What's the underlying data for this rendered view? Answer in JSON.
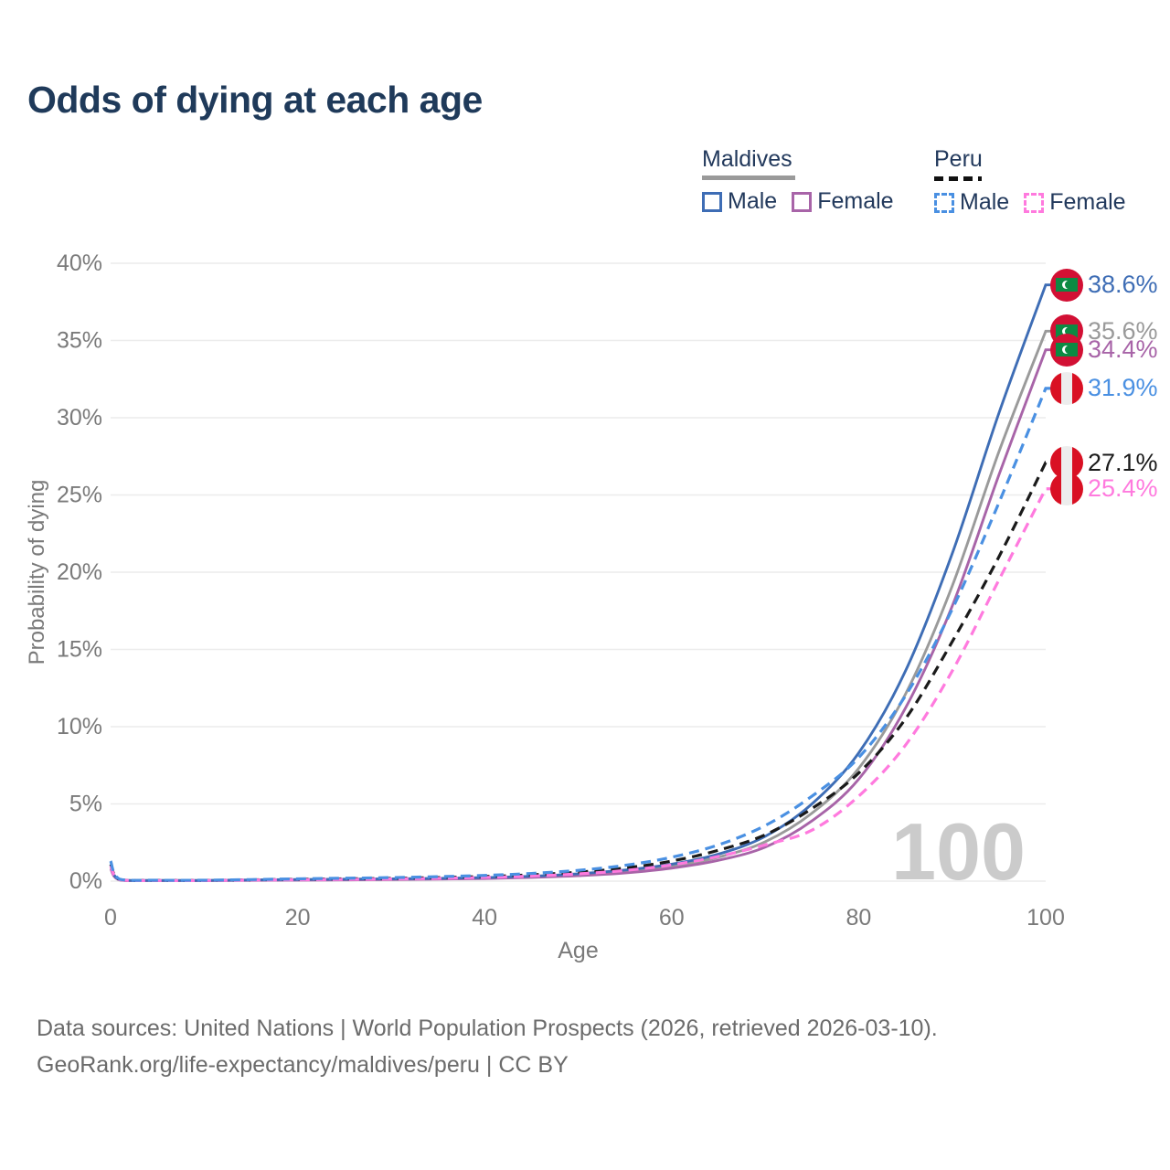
{
  "title": "Odds of dying at each age",
  "colors": {
    "title_text": "#1f3a5a",
    "legend_text": "#22395c",
    "axis_text": "#7a7a7a",
    "gridline": "#ececec",
    "watermark_text": "#cbcbcb",
    "footer_text": "#6b6b6b"
  },
  "legend": {
    "groups": [
      {
        "name": "Maldives",
        "line_style": "solid",
        "underline_color": "#9a9a9a",
        "items": [
          {
            "label": "Male",
            "color": "#3e6db5"
          },
          {
            "label": "Female",
            "color": "#a864a8"
          }
        ]
      },
      {
        "name": "Peru",
        "line_style": "dashed",
        "underline_color": "#111111",
        "items": [
          {
            "label": "Male",
            "color": "#4a90e2"
          },
          {
            "label": "Female",
            "color": "#ff7ade"
          }
        ]
      }
    ]
  },
  "chart_data": {
    "type": "line",
    "title": "Odds of dying at each age",
    "xlabel": "Age",
    "ylabel": "Probability of dying",
    "xlim": [
      0,
      100
    ],
    "ylim": [
      0,
      40
    ],
    "x_ticks": [
      0,
      20,
      40,
      60,
      80,
      100
    ],
    "y_ticks": [
      0,
      5,
      10,
      15,
      20,
      25,
      30,
      35,
      40
    ],
    "y_tick_suffix": "%",
    "grid": "horizontal-only",
    "legend_position": "top-right",
    "watermark": "100",
    "ages": [
      0,
      1,
      5,
      10,
      15,
      20,
      25,
      30,
      35,
      40,
      45,
      50,
      55,
      60,
      65,
      70,
      75,
      80,
      85,
      90,
      95,
      100
    ],
    "series": [
      {
        "id": "maldives-all",
        "name": "Maldives",
        "country": "Maldives",
        "sex": "Both",
        "flag": "mv",
        "color": "#9a9a9a",
        "dash": "solid",
        "end_value": 35.6,
        "end_label": "35.6%",
        "values": [
          0.9,
          0.08,
          0.04,
          0.04,
          0.06,
          0.08,
          0.1,
          0.12,
          0.15,
          0.2,
          0.28,
          0.41,
          0.62,
          0.96,
          1.55,
          2.55,
          4.4,
          7.3,
          12.1,
          19.1,
          27.8,
          35.6
        ]
      },
      {
        "id": "maldives-female",
        "name": "Maldives Female",
        "country": "Maldives",
        "sex": "Female",
        "flag": "mv",
        "color": "#a864a8",
        "dash": "solid",
        "end_value": 34.4,
        "end_label": "34.4%",
        "values": [
          0.8,
          0.07,
          0.03,
          0.03,
          0.05,
          0.06,
          0.08,
          0.1,
          0.13,
          0.17,
          0.24,
          0.35,
          0.53,
          0.84,
          1.35,
          2.2,
          3.9,
          6.6,
          11.2,
          17.8,
          26.3,
          34.4
        ]
      },
      {
        "id": "maldives-male",
        "name": "Maldives Male",
        "country": "Maldives",
        "sex": "Male",
        "flag": "mv",
        "color": "#3e6db5",
        "dash": "solid",
        "end_value": 38.6,
        "end_label": "38.6%",
        "values": [
          1.0,
          0.1,
          0.05,
          0.05,
          0.08,
          0.11,
          0.13,
          0.15,
          0.18,
          0.23,
          0.32,
          0.48,
          0.72,
          1.1,
          1.75,
          2.9,
          5.0,
          8.3,
          13.6,
          21.2,
          30.3,
          38.6
        ]
      },
      {
        "id": "peru-all",
        "name": "Peru",
        "country": "Peru",
        "sex": "Both",
        "flag": "pe",
        "color": "#1a1a1a",
        "dash": "dashed",
        "end_value": 27.1,
        "end_label": "27.1%",
        "values": [
          1.1,
          0.1,
          0.05,
          0.05,
          0.08,
          0.12,
          0.15,
          0.18,
          0.23,
          0.3,
          0.41,
          0.58,
          0.85,
          1.3,
          2.0,
          3.0,
          4.7,
          7.0,
          10.5,
          15.5,
          21.0,
          27.1
        ]
      },
      {
        "id": "peru-female",
        "name": "Peru Female",
        "country": "Peru",
        "sex": "Female",
        "flag": "pe",
        "color": "#ff7ade",
        "dash": "dashed",
        "end_value": 25.4,
        "end_label": "25.4%",
        "values": [
          1.0,
          0.09,
          0.04,
          0.04,
          0.07,
          0.09,
          0.11,
          0.14,
          0.18,
          0.24,
          0.33,
          0.47,
          0.69,
          1.05,
          1.6,
          2.35,
          3.3,
          5.5,
          8.8,
          13.6,
          19.5,
          25.4
        ]
      },
      {
        "id": "peru-male",
        "name": "Peru Male",
        "country": "Peru",
        "sex": "Male",
        "flag": "pe",
        "color": "#4a90e2",
        "dash": "dashed",
        "end_value": 31.9,
        "end_label": "31.9%",
        "values": [
          1.3,
          0.12,
          0.06,
          0.06,
          0.1,
          0.15,
          0.19,
          0.23,
          0.29,
          0.37,
          0.5,
          0.7,
          1.02,
          1.55,
          2.35,
          3.6,
          5.5,
          8.0,
          12.0,
          17.6,
          24.5,
          31.9
        ]
      }
    ]
  },
  "footer": {
    "line1": "Data sources: United Nations | World Population Prospects (2026, retrieved 2026-03-10).",
    "line2": "GeoRank.org/life-expectancy/maldives/peru | CC BY"
  }
}
